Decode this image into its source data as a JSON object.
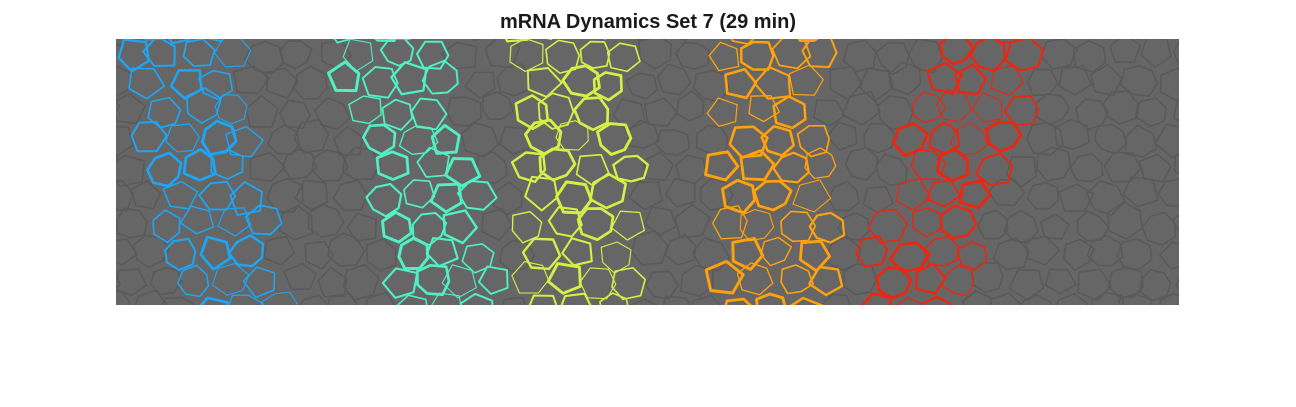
{
  "title": "mRNA Dynamics Set 7 (29 min)",
  "background_color": "#666666",
  "cell_edge_color": "#5a5a5a",
  "stripes": [
    {
      "color": "#1ca6f5"
    },
    {
      "color": "#4ef0c4"
    },
    {
      "color": "#d2f046"
    },
    {
      "color": "#ffa20d"
    },
    {
      "color": "#ee250f"
    }
  ]
}
